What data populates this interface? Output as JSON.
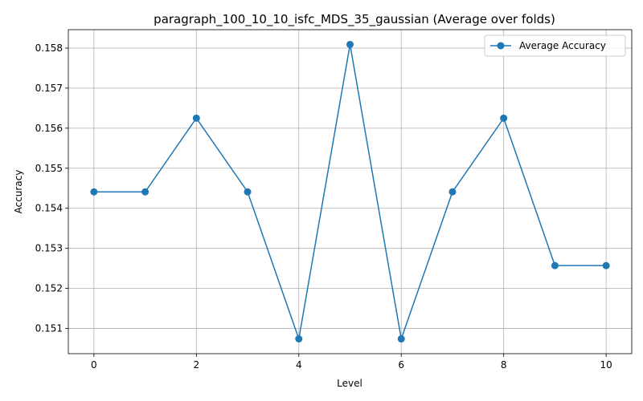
{
  "chart_data": {
    "type": "line",
    "title": "paragraph_100_10_10_isfc_MDS_35_gaussian (Average over folds)",
    "xlabel": "Level",
    "ylabel": "Accuracy",
    "x": [
      0,
      1,
      2,
      3,
      4,
      5,
      6,
      7,
      8,
      9,
      10
    ],
    "series": [
      {
        "name": "Average Accuracy",
        "values": [
          0.15441,
          0.15441,
          0.15625,
          0.15441,
          0.15074,
          0.15809,
          0.15074,
          0.15441,
          0.15625,
          0.15257,
          0.15257
        ],
        "color": "#1f77b4"
      }
    ],
    "xlim": [
      -0.5,
      10.5
    ],
    "ylim": [
      0.15037,
      0.15846
    ],
    "xticks": [
      0,
      2,
      4,
      6,
      8,
      10
    ],
    "yticks": [
      0.151,
      0.152,
      0.153,
      0.154,
      0.155,
      0.156,
      0.157,
      0.158
    ],
    "grid": true,
    "legend": "top-right"
  }
}
